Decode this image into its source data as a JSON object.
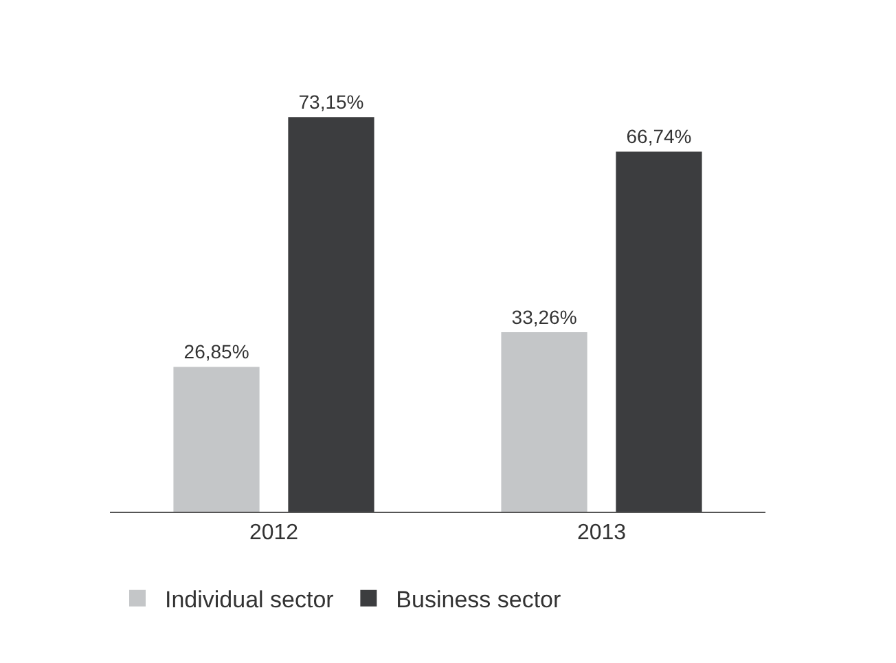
{
  "chart_data": {
    "type": "bar",
    "categories": [
      "2012",
      "2013"
    ],
    "series": [
      {
        "name": "Individual sector",
        "color": "#c4c6c8",
        "values": [
          26.85,
          33.26
        ],
        "value_labels": [
          "26,85%",
          "33,26%"
        ]
      },
      {
        "name": "Business sector",
        "color": "#3c3d3f",
        "values": [
          73.15,
          66.74
        ],
        "value_labels": [
          "73,15%",
          "66,74%"
        ]
      }
    ],
    "legend": "bottom left",
    "grid": false
  }
}
